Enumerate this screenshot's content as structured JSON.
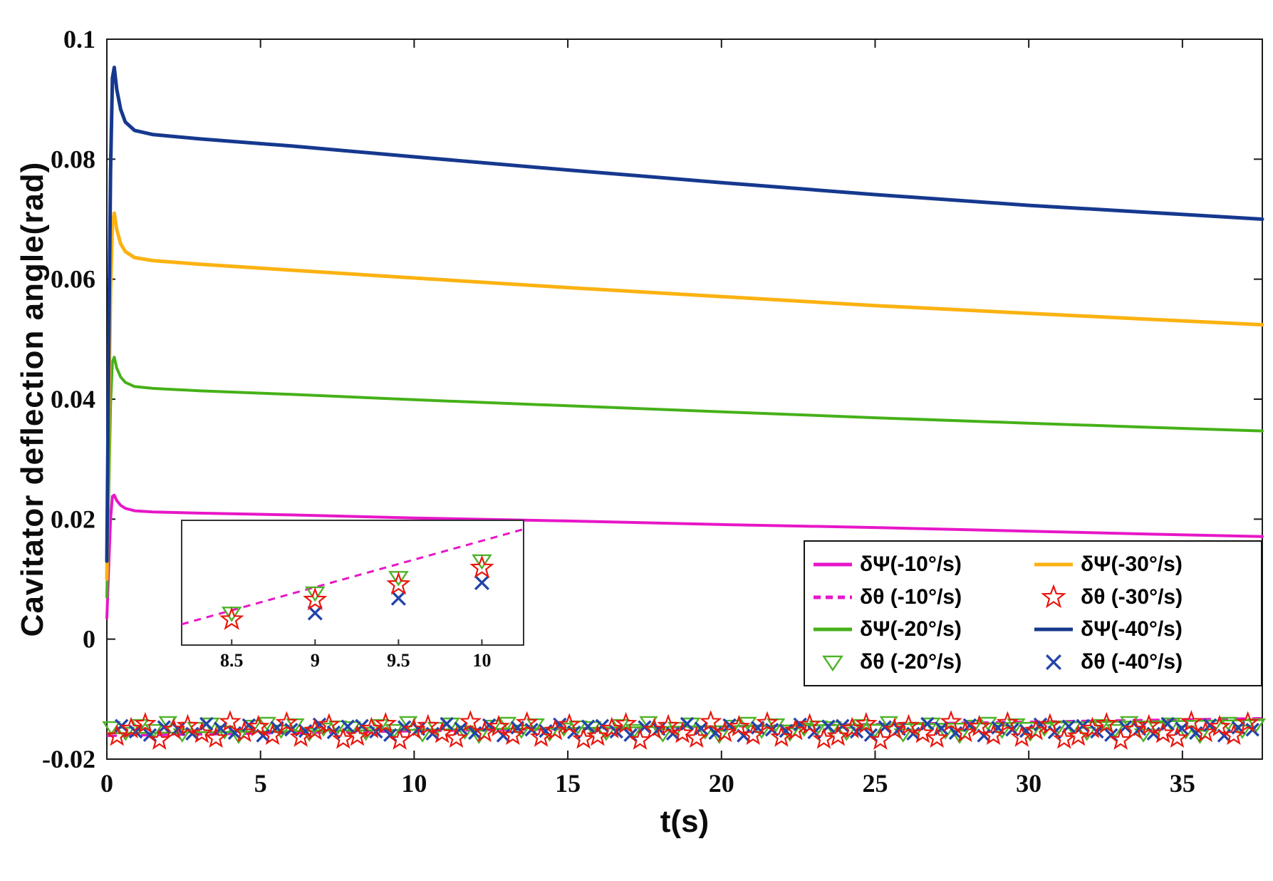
{
  "chart_data": {
    "type": "line",
    "title": "",
    "xlabel": "t(s)",
    "ylabel": "Cavitator deflection angle(rad)",
    "xlim": [
      0,
      37.6
    ],
    "ylim": [
      -0.02,
      0.1
    ],
    "grid": false,
    "legend_position": "bottom-right",
    "xtick_values": [
      0,
      5,
      10,
      15,
      20,
      25,
      30,
      35
    ],
    "xtick_labels": [
      "0",
      "5",
      "10",
      "15",
      "20",
      "25",
      "30",
      "35"
    ],
    "ytick_values": [
      -0.02,
      0,
      0.02,
      0.04,
      0.06,
      0.08,
      0.1
    ],
    "ytick_labels": [
      "-0.02",
      "0",
      "0.02",
      "0.04",
      "0.06",
      "0.08",
      "0.1"
    ],
    "colors": {
      "magenta": "#e716c8",
      "orange": "#fbb211",
      "green": "#45b119",
      "triangle_green": "#4eb329",
      "navy": "#16388e",
      "red": "#e8170e",
      "x_blue": "#2244aa",
      "axis": "#1a1a1a"
    },
    "series": [
      {
        "name": "δΨ(-10°/s)",
        "color_key": "magenta",
        "width": 4,
        "points": [
          [
            0,
            0.0035
          ],
          [
            0.06,
            0.012
          ],
          [
            0.12,
            0.02
          ],
          [
            0.18,
            0.0238
          ],
          [
            0.24,
            0.024
          ],
          [
            0.32,
            0.0231
          ],
          [
            0.45,
            0.0223
          ],
          [
            0.6,
            0.0218
          ],
          [
            0.9,
            0.0214
          ],
          [
            1.5,
            0.0212
          ],
          [
            3,
            0.021
          ],
          [
            6,
            0.0207
          ],
          [
            10,
            0.0202
          ],
          [
            15,
            0.0197
          ],
          [
            20,
            0.0191
          ],
          [
            25,
            0.0186
          ],
          [
            30,
            0.018
          ],
          [
            34,
            0.0175
          ],
          [
            37.6,
            0.0171
          ]
        ]
      },
      {
        "name": "δΨ(-20°/s)",
        "color_key": "green",
        "width": 4,
        "points": [
          [
            0,
            0.007
          ],
          [
            0.06,
            0.024
          ],
          [
            0.12,
            0.039
          ],
          [
            0.18,
            0.0462
          ],
          [
            0.24,
            0.047
          ],
          [
            0.32,
            0.0452
          ],
          [
            0.45,
            0.0437
          ],
          [
            0.6,
            0.0428
          ],
          [
            0.9,
            0.0421
          ],
          [
            1.5,
            0.0418
          ],
          [
            3,
            0.0414
          ],
          [
            6,
            0.0408
          ],
          [
            10,
            0.0399
          ],
          [
            15,
            0.0389
          ],
          [
            20,
            0.0379
          ],
          [
            25,
            0.0369
          ],
          [
            30,
            0.036
          ],
          [
            34,
            0.0353
          ],
          [
            37.6,
            0.0347
          ]
        ]
      },
      {
        "name": "δΨ(-30°/s)",
        "color_key": "orange",
        "width": 5,
        "points": [
          [
            0,
            0.01
          ],
          [
            0.06,
            0.036
          ],
          [
            0.12,
            0.058
          ],
          [
            0.18,
            0.0695
          ],
          [
            0.24,
            0.071
          ],
          [
            0.32,
            0.0683
          ],
          [
            0.45,
            0.0659
          ],
          [
            0.6,
            0.0646
          ],
          [
            0.9,
            0.0636
          ],
          [
            1.5,
            0.0631
          ],
          [
            3,
            0.0625
          ],
          [
            6,
            0.0615
          ],
          [
            10,
            0.0602
          ],
          [
            15,
            0.0586
          ],
          [
            20,
            0.0571
          ],
          [
            25,
            0.0556
          ],
          [
            30,
            0.0543
          ],
          [
            34,
            0.0533
          ],
          [
            37.6,
            0.0524
          ]
        ]
      },
      {
        "name": "δΨ(-40°/s)",
        "color_key": "navy",
        "width": 5,
        "points": [
          [
            0,
            0.013
          ],
          [
            0.06,
            0.048
          ],
          [
            0.12,
            0.078
          ],
          [
            0.18,
            0.0935
          ],
          [
            0.24,
            0.0953
          ],
          [
            0.32,
            0.0917
          ],
          [
            0.45,
            0.0883
          ],
          [
            0.6,
            0.0862
          ],
          [
            0.9,
            0.0848
          ],
          [
            1.5,
            0.0841
          ],
          [
            3,
            0.0834
          ],
          [
            6,
            0.0822
          ],
          [
            10,
            0.0804
          ],
          [
            15,
            0.0782
          ],
          [
            20,
            0.0761
          ],
          [
            25,
            0.0741
          ],
          [
            30,
            0.0723
          ],
          [
            34,
            0.0711
          ],
          [
            37.6,
            0.07
          ]
        ]
      }
    ],
    "theta_lines": [
      {
        "name": "δθ (-10°/s)",
        "color_key": "magenta",
        "dash": [
          14,
          10
        ],
        "width": 3.5,
        "points": [
          [
            0,
            -0.0161
          ],
          [
            37.6,
            -0.0132
          ]
        ]
      },
      {
        "name": "δθ (-20°/s)",
        "color_key": "green",
        "dash": null,
        "width": 2.5,
        "points": [
          [
            0,
            -0.0157
          ],
          [
            37.6,
            -0.0135
          ]
        ]
      }
    ],
    "scatter": {
      "x_start": 0.15,
      "x_step": 0.46,
      "count": 82,
      "series": [
        {
          "name": "δθ (-20°/s)",
          "marker": "triangle",
          "color_key": "triangle_green",
          "x_offset": 0,
          "base": -0.0149,
          "amp": 0.0012,
          "pattern": [
            0.2,
            -0.6,
            0.5,
            -0.2,
            0.9,
            -0.8,
            0.1,
            0.7,
            -0.4,
            -1,
            0.4,
            0.8,
            -0.3,
            0.6,
            -0.7,
            0,
            0.3
          ]
        },
        {
          "name": "δθ (-40°/s)",
          "marker": "x",
          "color_key": "x_blue",
          "x_offset": 0.33,
          "base": -0.0151,
          "amp": 0.0011,
          "pattern": [
            0.6,
            -0.3,
            -0.8,
            0.4,
            0.1,
            -0.6,
            0.9,
            0.2,
            -0.5,
            0.7,
            -0.9,
            0.3,
            0,
            -0.2,
            0.8,
            -0.4,
            0.5
          ]
        },
        {
          "name": "δθ (-30°/s)",
          "marker": "star",
          "color_key": "red",
          "x_offset": 0.18,
          "base": -0.0154,
          "amp": 0.0016,
          "pattern": [
            -0.5,
            0.3,
            0.8,
            -0.9,
            0.2,
            0.6,
            -0.2,
            -0.7,
            1,
            -0.1,
            0.5,
            -0.4,
            0.9,
            -0.6,
            0.1,
            0.7,
            -0.8
          ]
        }
      ]
    },
    "inset": {
      "xlim": [
        8.2,
        10.25
      ],
      "ylim": [
        -0.0165,
        -0.0144
      ],
      "xtick_values": [
        8.5,
        9,
        9.5,
        10
      ],
      "xtick_labels": [
        "8.5",
        "9",
        "9.5",
        "10"
      ],
      "line": {
        "name": "δθ (-10°/s)",
        "color_key": "magenta",
        "dash": [
          10,
          8
        ],
        "width": 3,
        "points": [
          [
            8.2,
            -0.01615
          ],
          [
            10.25,
            -0.01455
          ]
        ]
      },
      "markers": [
        {
          "name": "δθ (-20°/s)",
          "marker": "triangle",
          "color_key": "triangle_green",
          "points": [
            [
              8.5,
              -0.01596
            ],
            [
              9,
              -0.01562
            ],
            [
              9.5,
              -0.01536
            ],
            [
              10,
              -0.01508
            ]
          ]
        },
        {
          "name": "δθ (-40°/s)",
          "marker": "x",
          "color_key": "x_blue",
          "points": [
            [
              9,
              -0.01596
            ],
            [
              9.5,
              -0.01571
            ],
            [
              10,
              -0.01545
            ]
          ]
        },
        {
          "name": "δθ (-30°/s)",
          "marker": "star",
          "color_key": "red",
          "points": [
            [
              8.5,
              -0.01607
            ],
            [
              9,
              -0.01574
            ],
            [
              9.5,
              -0.01548
            ],
            [
              10,
              -0.0152
            ]
          ]
        }
      ]
    },
    "legend": {
      "entries": [
        {
          "label": "δΨ(-10°/s)",
          "swatch": "line",
          "color_key": "magenta"
        },
        {
          "label": "δΨ(-30°/s)",
          "swatch": "line",
          "color_key": "orange"
        },
        {
          "label": "δθ (-10°/s)",
          "swatch": "dashed-line",
          "color_key": "magenta"
        },
        {
          "label": "δθ (-30°/s)",
          "swatch": "star",
          "color_key": "red"
        },
        {
          "label": "δΨ(-20°/s)",
          "swatch": "line",
          "color_key": "green"
        },
        {
          "label": "δΨ(-40°/s)",
          "swatch": "line",
          "color_key": "navy"
        },
        {
          "label": "δθ (-20°/s)",
          "swatch": "triangle",
          "color_key": "triangle_green"
        },
        {
          "label": "δθ (-40°/s)",
          "swatch": "x",
          "color_key": "x_blue"
        }
      ]
    }
  }
}
